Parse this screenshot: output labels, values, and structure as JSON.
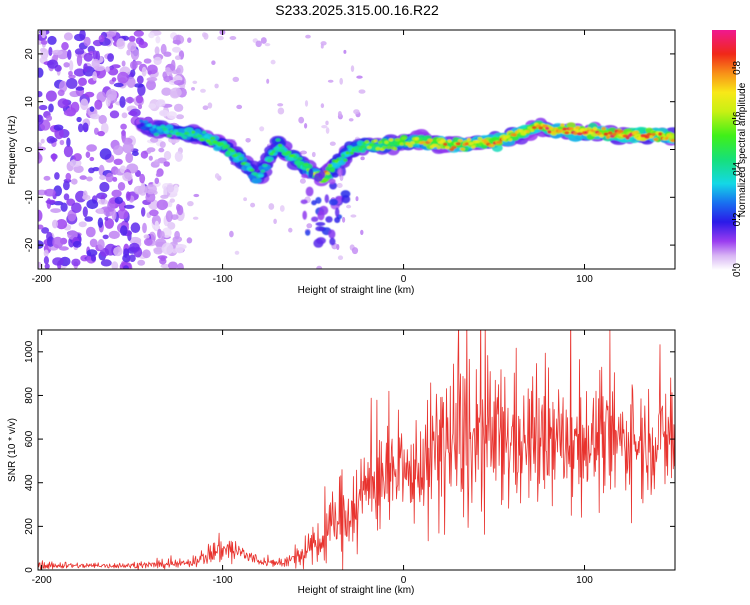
{
  "title": "S233.2025.315.00.16.R22",
  "chart_data": [
    {
      "type": "heatmap",
      "name": "spectrogram",
      "xlabel": "Height of straight line (km)",
      "ylabel": "Frequency (Hz)",
      "xlim": [
        -202,
        150
      ],
      "ylim": [
        -25,
        25
      ],
      "xticks": [
        -200,
        -100,
        0,
        100
      ],
      "yticks": [
        -20,
        -10,
        0,
        10,
        20
      ],
      "colorbar": {
        "label": "Normalized spectral amplitude",
        "range": [
          0.0,
          0.95
        ],
        "ticks": [
          0.0,
          0.2,
          0.4,
          0.6,
          0.8
        ],
        "tick_labels": [
          "0.0",
          "0.2",
          "0.4",
          "0.6",
          "0.8"
        ]
      },
      "ridge": {
        "x": [
          -145,
          -130,
          -115,
          -100,
          -90,
          -80,
          -70,
          -60,
          -50,
          -45,
          -40,
          -35,
          -30,
          -20,
          -10,
          0,
          10,
          20,
          30,
          40,
          50,
          60,
          70,
          75,
          80,
          90,
          100,
          110,
          120,
          130,
          140,
          150
        ],
        "frequency": [
          5,
          4,
          3,
          1,
          -2,
          -6,
          1,
          -2,
          -5,
          -6,
          -4,
          -2,
          0,
          1,
          1,
          1.5,
          2,
          1,
          1,
          1.5,
          1.5,
          2.5,
          4,
          5,
          4,
          4,
          3.5,
          3.5,
          3,
          3,
          3,
          2.5
        ],
        "amplitude": [
          0.3,
          0.45,
          0.5,
          0.55,
          0.5,
          0.45,
          0.5,
          0.55,
          0.6,
          0.9,
          0.6,
          0.5,
          0.5,
          0.6,
          0.65,
          0.7,
          0.75,
          0.8,
          0.8,
          0.8,
          0.85,
          0.85,
          0.8,
          0.85,
          0.9,
          0.9,
          0.9,
          0.9,
          0.9,
          0.9,
          0.85,
          0.8
        ]
      }
    },
    {
      "type": "line",
      "name": "snr",
      "xlabel": "Height of straight line (km)",
      "ylabel": "SNR (10 * v/v)",
      "xlim": [
        -202,
        150
      ],
      "ylim": [
        0,
        1100
      ],
      "xticks": [
        -200,
        -100,
        0,
        100
      ],
      "yticks": [
        0,
        200,
        400,
        600,
        800,
        1000
      ],
      "color": "#e8332e",
      "envelope": {
        "x": [
          -202,
          -150,
          -120,
          -110,
          -100,
          -90,
          -80,
          -70,
          -60,
          -50,
          -45,
          -40,
          -35,
          -30,
          -25,
          -20,
          -10,
          0,
          10,
          20,
          30,
          40,
          50,
          60,
          70,
          80,
          90,
          100,
          110,
          120,
          130,
          140,
          150
        ],
        "mean": [
          20,
          20,
          30,
          60,
          100,
          80,
          40,
          30,
          50,
          100,
          130,
          200,
          240,
          260,
          320,
          380,
          440,
          420,
          480,
          560,
          600,
          580,
          610,
          600,
          580,
          580,
          590,
          590,
          600,
          590,
          580,
          590,
          600
        ],
        "spread": [
          10,
          10,
          15,
          30,
          50,
          40,
          15,
          12,
          30,
          60,
          80,
          100,
          130,
          120,
          150,
          160,
          140,
          120,
          160,
          250,
          300,
          280,
          250,
          230,
          200,
          190,
          180,
          180,
          170,
          160,
          170,
          180,
          180
        ]
      }
    }
  ]
}
